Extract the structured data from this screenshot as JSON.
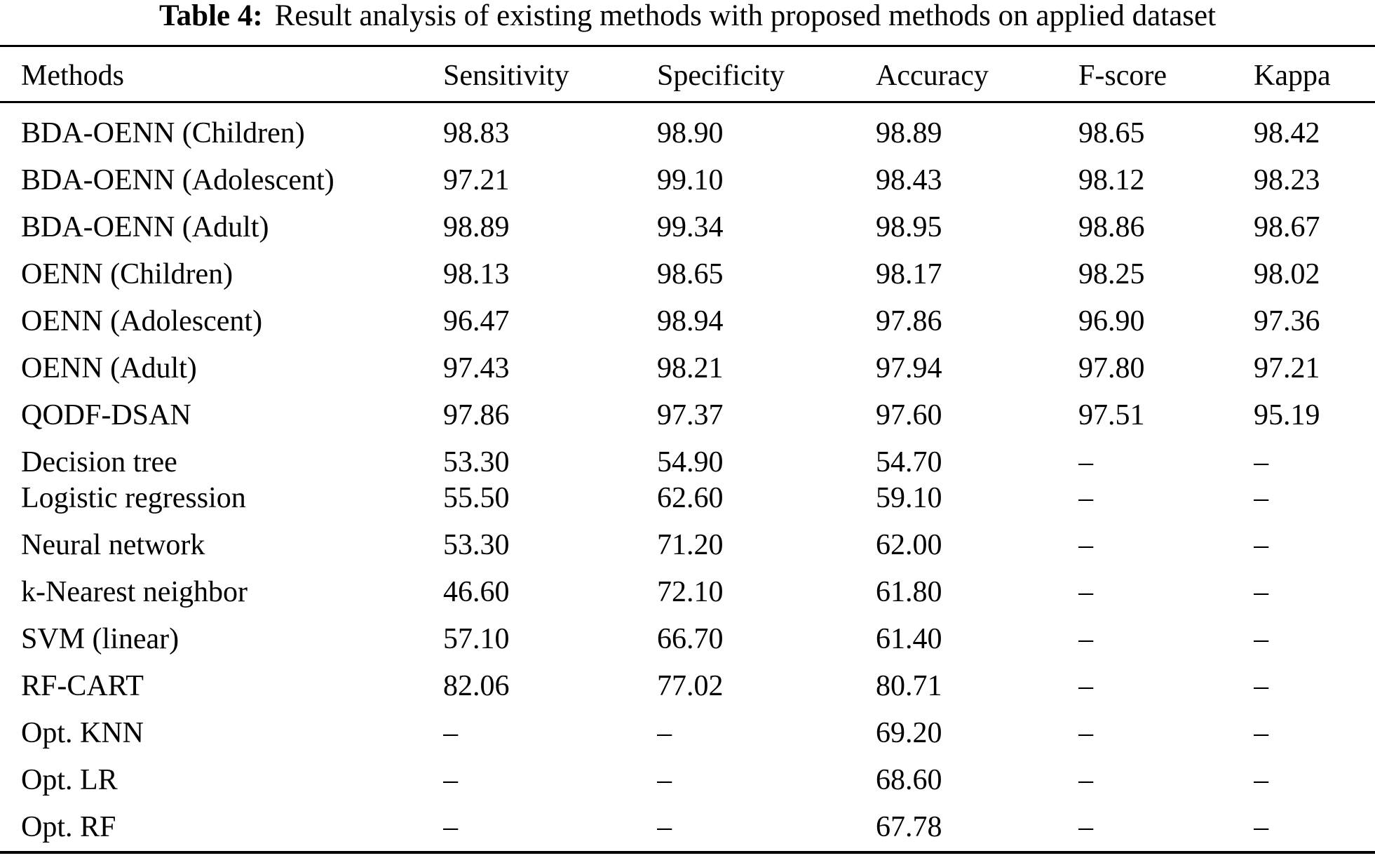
{
  "caption": {
    "label": "Table 4:",
    "text": "Result analysis of existing methods with proposed methods on applied dataset"
  },
  "colors": {
    "text": "#000000",
    "background": "#ffffff",
    "rule": "#000000"
  },
  "table": {
    "headers": [
      "Methods",
      "Sensitivity",
      "Specificity",
      "Accuracy",
      "F-score",
      "Kappa"
    ],
    "rows": [
      [
        "BDA-OENN (Children)",
        "98.83",
        "98.90",
        "98.89",
        "98.65",
        "98.42"
      ],
      [
        "BDA-OENN (Adolescent)",
        "97.21",
        "99.10",
        "98.43",
        "98.12",
        "98.23"
      ],
      [
        "BDA-OENN (Adult)",
        "98.89",
        "99.34",
        "98.95",
        "98.86",
        "98.67"
      ],
      [
        "OENN (Children)",
        "98.13",
        "98.65",
        "98.17",
        "98.25",
        "98.02"
      ],
      [
        "OENN (Adolescent)",
        "96.47",
        "98.94",
        "97.86",
        "96.90",
        "97.36"
      ],
      [
        "OENN (Adult)",
        "97.43",
        "98.21",
        "97.94",
        "97.80",
        "97.21"
      ],
      [
        "QODF-DSAN",
        "97.86",
        "97.37",
        "97.60",
        "97.51",
        "95.19"
      ],
      [
        "Decision tree",
        "53.30",
        "54.90",
        "54.70",
        "–",
        "–"
      ],
      [
        "Logistic regression",
        "55.50",
        "62.60",
        "59.10",
        "–",
        "–"
      ],
      [
        "Neural network",
        "53.30",
        "71.20",
        "62.00",
        "–",
        "–"
      ],
      [
        "k-Nearest neighbor",
        "46.60",
        "72.10",
        "61.80",
        "–",
        "–"
      ],
      [
        "SVM (linear)",
        "57.10",
        "66.70",
        "61.40",
        "–",
        "–"
      ],
      [
        "RF-CART",
        "82.06",
        "77.02",
        "80.71",
        "–",
        "–"
      ],
      [
        "Opt. KNN",
        "–",
        "–",
        "69.20",
        "–",
        "–"
      ],
      [
        "Opt. LR",
        "–",
        "–",
        "68.60",
        "–",
        "–"
      ],
      [
        "Opt. RF",
        "–",
        "–",
        "67.78",
        "–",
        "–"
      ]
    ]
  }
}
